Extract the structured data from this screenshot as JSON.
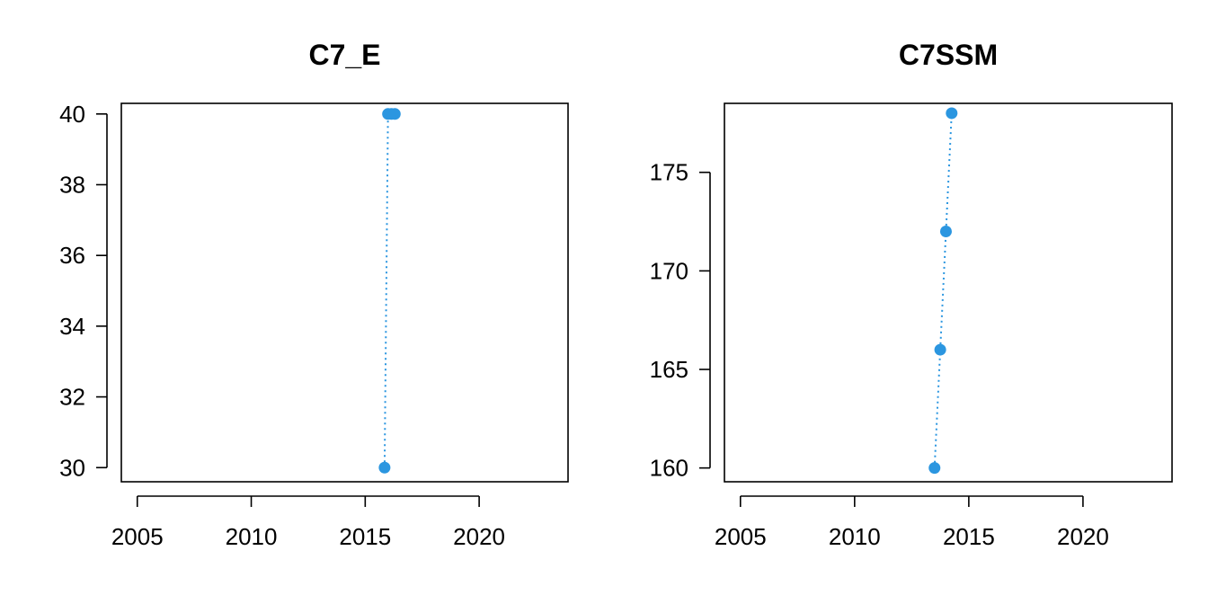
{
  "colors": {
    "series": "#2b96e0"
  },
  "chart_data": [
    {
      "type": "line",
      "title": "C7_E",
      "xlabel": "",
      "ylabel": "",
      "xlim": [
        2004.3,
        2023.9
      ],
      "ylim": [
        29.6,
        40.3
      ],
      "x_ticks": [
        2005,
        2010,
        2015,
        2020
      ],
      "y_ticks": [
        30,
        32,
        34,
        36,
        38,
        40
      ],
      "grid": false,
      "line_style": "dotted",
      "marker": "filled-circle",
      "x": [
        2015.85,
        2016.0,
        2016.15,
        2016.3
      ],
      "y": [
        30,
        40,
        40,
        40
      ]
    },
    {
      "type": "line",
      "title": "C7SSM",
      "xlabel": "",
      "ylabel": "",
      "xlim": [
        2004.3,
        2023.9
      ],
      "ylim": [
        159.3,
        178.5
      ],
      "x_ticks": [
        2005,
        2010,
        2015,
        2020
      ],
      "y_ticks": [
        160,
        165,
        170,
        175
      ],
      "grid": false,
      "line_style": "dotted",
      "marker": "filled-circle",
      "x": [
        2013.5,
        2013.75,
        2014.0,
        2014.25
      ],
      "y": [
        160,
        166,
        172,
        178
      ]
    }
  ]
}
